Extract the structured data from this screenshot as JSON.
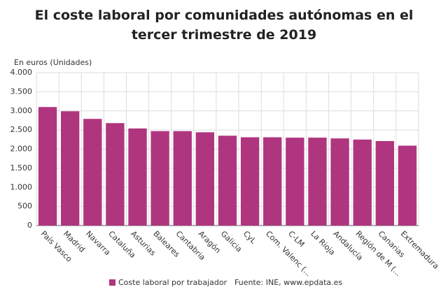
{
  "chart_data": {
    "type": "bar",
    "title": "El coste laboral por comunidades autónomas en el tercer trimestre de 2019",
    "y_label": "En euros (Unidades)",
    "categories": [
      "País Vasco",
      "Madrid",
      "Navarra",
      "Cataluña",
      "Asturias",
      "Baleares",
      "Cantabria",
      "Aragón",
      "Galicia",
      "CyL",
      "Com. Valenc (...",
      "C-LM",
      "La Rioja",
      "Andalucía",
      "Región de M (...",
      "Canarias",
      "Extremadura"
    ],
    "series": [
      {
        "name": "Coste laboral por trabajador",
        "color": "#b0357f",
        "values": [
          3100,
          2990,
          2790,
          2680,
          2540,
          2470,
          2470,
          2440,
          2350,
          2310,
          2310,
          2300,
          2300,
          2280,
          2250,
          2210,
          2090
        ]
      }
    ],
    "ylim": [
      0,
      4000
    ],
    "yticks": [
      0,
      500,
      {
        "value": 1000,
        "label": "1.000"
      },
      {
        "value": 1500,
        "label": "1.500"
      },
      {
        "value": 2000,
        "label": "2.000"
      },
      {
        "value": 2500,
        "label": "2.500"
      },
      {
        "value": 3000,
        "label": "3.000"
      },
      {
        "value": 3500,
        "label": "3.500"
      },
      {
        "value": 4000,
        "label": "4.000"
      }
    ],
    "grid": true,
    "source": "Fuente: INE, www.epdata.es"
  }
}
